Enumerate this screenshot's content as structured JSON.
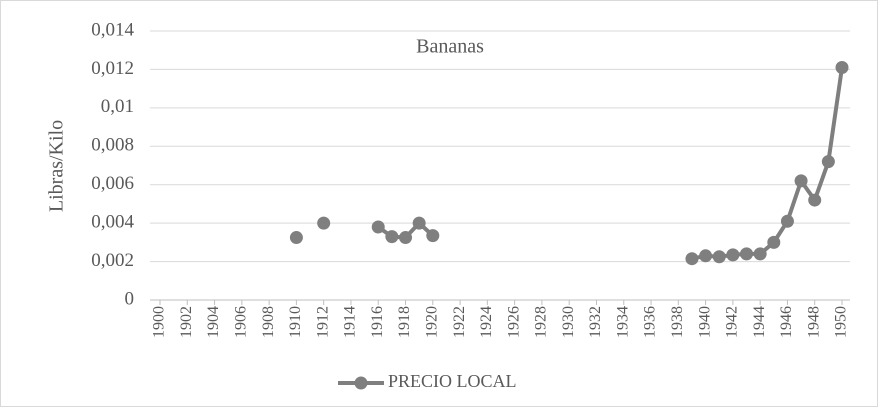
{
  "chart_data": {
    "type": "line",
    "title": "Bananas",
    "ylabel": "Libras/Kilo",
    "x": [
      1900,
      1901,
      1902,
      1903,
      1904,
      1905,
      1906,
      1907,
      1908,
      1909,
      1910,
      1911,
      1912,
      1913,
      1914,
      1915,
      1916,
      1917,
      1918,
      1919,
      1920,
      1921,
      1922,
      1923,
      1924,
      1925,
      1926,
      1927,
      1928,
      1929,
      1930,
      1931,
      1932,
      1933,
      1934,
      1935,
      1936,
      1937,
      1938,
      1939,
      1940,
      1941,
      1942,
      1943,
      1944,
      1945,
      1946,
      1947,
      1948,
      1949,
      1950
    ],
    "series": [
      {
        "name": "PRECIO LOCAL",
        "color": "#7f7f7f",
        "values": [
          null,
          null,
          null,
          null,
          null,
          null,
          null,
          null,
          null,
          null,
          0.00325,
          null,
          0.004,
          null,
          null,
          null,
          0.0038,
          0.0033,
          0.00325,
          0.004,
          0.00335,
          null,
          null,
          null,
          null,
          null,
          null,
          null,
          null,
          null,
          null,
          null,
          null,
          null,
          null,
          null,
          null,
          null,
          null,
          0.00215,
          0.0023,
          0.00225,
          0.00235,
          0.0024,
          0.0024,
          0.003,
          0.0041,
          0.0062,
          0.0052,
          0.0072,
          0.0121
        ]
      }
    ],
    "xlim": [
      1900,
      1950
    ],
    "xticks": [
      1900,
      1902,
      1904,
      1906,
      1908,
      1910,
      1912,
      1914,
      1916,
      1918,
      1920,
      1922,
      1924,
      1926,
      1928,
      1930,
      1932,
      1934,
      1936,
      1938,
      1940,
      1942,
      1944,
      1946,
      1948,
      1950
    ],
    "ylim": [
      0,
      0.014
    ],
    "yticks": [
      0,
      {
        "value": 0.002,
        "label": "0,002"
      },
      {
        "value": 0.004,
        "label": "0,004"
      },
      {
        "value": 0.006,
        "label": "0,006"
      },
      {
        "value": 0.008,
        "label": "0,008"
      },
      {
        "value": 0.01,
        "label": "0,01"
      },
      {
        "value": 0.012,
        "label": "0,012"
      },
      {
        "value": 0.014,
        "label": "0,014"
      }
    ],
    "grid": true,
    "legend": "bottom"
  }
}
